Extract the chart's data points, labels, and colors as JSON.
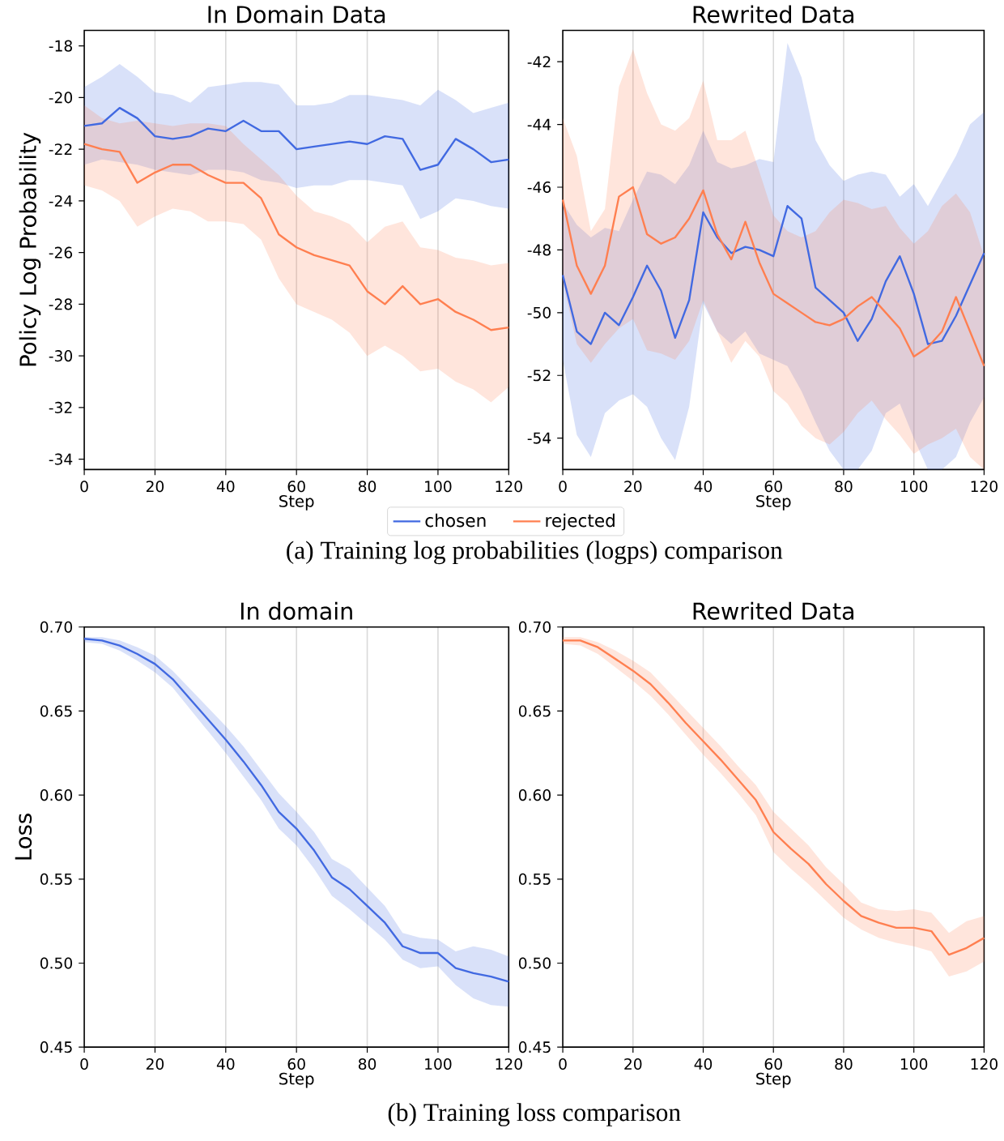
{
  "chart_data": [
    {
      "type": "line",
      "title": "In Domain Data",
      "xlabel": "Step",
      "ylabel": "Policy Log Probability",
      "x": [
        0,
        5,
        10,
        15,
        20,
        25,
        30,
        35,
        40,
        45,
        50,
        55,
        60,
        65,
        70,
        75,
        80,
        85,
        90,
        95,
        100,
        105,
        110,
        115,
        120
      ],
      "xlim": [
        0,
        120
      ],
      "xticks": [
        0,
        20,
        40,
        60,
        80,
        100,
        120
      ],
      "ylim": [
        -34.4,
        -17.4
      ],
      "yticks": [
        -34,
        -32,
        -30,
        -28,
        -26,
        -24,
        -22,
        -20,
        -18
      ],
      "grid": "x",
      "legend": "bottom",
      "annotations": [
        "(a) Training log probabilities (logps) comparison"
      ],
      "series": [
        {
          "name": "chosen",
          "color": "#4169e1",
          "values": [
            -21.1,
            -21.0,
            -20.4,
            -20.8,
            -21.5,
            -21.6,
            -21.5,
            -21.2,
            -21.3,
            -20.9,
            -21.3,
            -21.3,
            -22.0,
            -21.9,
            -21.8,
            -21.7,
            -21.8,
            -21.5,
            -21.6,
            -22.8,
            -22.6,
            -21.6,
            -22.0,
            -22.5,
            -22.4
          ],
          "upper": [
            -19.6,
            -19.2,
            -18.7,
            -19.2,
            -19.8,
            -19.9,
            -20.2,
            -19.6,
            -19.5,
            -19.4,
            -19.4,
            -19.5,
            -20.3,
            -20.3,
            -20.2,
            -19.9,
            -19.9,
            -20.0,
            -20.1,
            -20.3,
            -19.7,
            -20.1,
            -20.6,
            -20.4,
            -20.2
          ],
          "lower": [
            -22.6,
            -22.4,
            -22.5,
            -22.6,
            -22.8,
            -22.9,
            -23.0,
            -22.8,
            -22.8,
            -22.9,
            -23.2,
            -23.3,
            -23.5,
            -23.4,
            -23.4,
            -23.2,
            -23.2,
            -23.3,
            -23.4,
            -24.7,
            -24.4,
            -23.9,
            -24.0,
            -24.2,
            -24.3
          ]
        },
        {
          "name": "rejected",
          "color": "#ff7f50",
          "values": [
            -21.8,
            -22.0,
            -22.1,
            -23.3,
            -22.9,
            -22.6,
            -22.6,
            -23.0,
            -23.3,
            -23.3,
            -23.9,
            -25.3,
            -25.8,
            -26.1,
            -26.3,
            -26.5,
            -27.5,
            -28.0,
            -27.3,
            -28.0,
            -27.8,
            -28.3,
            -28.6,
            -29.0,
            -28.9
          ],
          "upper": [
            -20.3,
            -20.8,
            -21.0,
            -20.9,
            -21.0,
            -21.1,
            -21.0,
            -21.0,
            -21.1,
            -21.8,
            -22.4,
            -23.0,
            -23.8,
            -24.4,
            -24.6,
            -24.9,
            -25.6,
            -25.0,
            -24.8,
            -25.8,
            -25.9,
            -26.2,
            -26.3,
            -26.5,
            -26.4
          ],
          "lower": [
            -23.4,
            -23.6,
            -24.0,
            -25.0,
            -24.6,
            -24.3,
            -24.4,
            -24.8,
            -24.8,
            -24.9,
            -25.5,
            -27.0,
            -28.0,
            -28.3,
            -28.6,
            -29.1,
            -30.0,
            -29.6,
            -30.0,
            -30.6,
            -30.5,
            -31.0,
            -31.3,
            -31.8,
            -31.2
          ]
        }
      ]
    },
    {
      "type": "line",
      "title": "Rewrited Data",
      "xlabel": "Step",
      "x": [
        0,
        4,
        8,
        12,
        16,
        20,
        24,
        28,
        32,
        36,
        40,
        44,
        48,
        52,
        56,
        60,
        64,
        68,
        72,
        76,
        80,
        84,
        88,
        92,
        96,
        100,
        104,
        108,
        112,
        116,
        120
      ],
      "xlim": [
        0,
        120
      ],
      "xticks": [
        0,
        20,
        40,
        60,
        80,
        100,
        120
      ],
      "ylim": [
        -55,
        -41
      ],
      "yticks": [
        -54,
        -52,
        -50,
        -48,
        -46,
        -44,
        -42
      ],
      "grid": "x",
      "series": [
        {
          "color": "#4169e1",
          "values": [
            -48.8,
            -50.6,
            -51.0,
            -50.0,
            -50.4,
            -49.5,
            -48.5,
            -49.3,
            -50.8,
            -49.6,
            -46.8,
            -47.6,
            -48.1,
            -47.9,
            -48.0,
            -48.2,
            -46.6,
            -47.0,
            -49.2,
            -49.6,
            -50.0,
            -50.9,
            -50.2,
            -49.0,
            -48.2,
            -49.4,
            -51.0,
            -50.9,
            -50.1,
            -49.1,
            -48.1
          ],
          "upper": [
            -46.5,
            -47.2,
            -47.6,
            -47.3,
            -47.4,
            -46.4,
            -45.5,
            -45.6,
            -45.9,
            -45.3,
            -44.2,
            -45.2,
            -45.4,
            -45.3,
            -45.1,
            -45.2,
            -41.4,
            -42.5,
            -44.5,
            -45.3,
            -45.8,
            -45.6,
            -45.5,
            -45.6,
            -46.3,
            -45.9,
            -46.6,
            -45.8,
            -45.0,
            -44.0,
            -43.6
          ],
          "lower": [
            -51.5,
            -53.9,
            -54.6,
            -53.2,
            -52.8,
            -52.6,
            -53.0,
            -54.0,
            -54.7,
            -53.0,
            -49.7,
            -50.6,
            -51.0,
            -50.6,
            -51.3,
            -51.5,
            -51.7,
            -52.5,
            -53.5,
            -54.4,
            -55.0,
            -55.0,
            -54.4,
            -53.2,
            -52.9,
            -54.0,
            -55.0,
            -55.0,
            -54.6,
            -53.5,
            -52.7
          ]
        },
        {
          "color": "#ff7f50",
          "values": [
            -46.4,
            -48.5,
            -49.4,
            -48.5,
            -46.3,
            -46.0,
            -47.5,
            -47.8,
            -47.6,
            -47.0,
            -46.1,
            -47.5,
            -48.3,
            -47.1,
            -48.4,
            -49.4,
            -49.7,
            -50.0,
            -50.3,
            -50.4,
            -50.2,
            -49.8,
            -49.5,
            -50.0,
            -50.5,
            -51.4,
            -51.1,
            -50.6,
            -49.5,
            -50.6,
            -51.7
          ],
          "upper": [
            -43.8,
            -45.0,
            -47.4,
            -46.7,
            -42.8,
            -41.6,
            -43.0,
            -44.0,
            -44.2,
            -43.8,
            -42.6,
            -44.5,
            -44.5,
            -44.2,
            -45.5,
            -46.9,
            -47.4,
            -47.6,
            -47.4,
            -46.8,
            -46.4,
            -46.5,
            -46.7,
            -46.6,
            -47.3,
            -47.8,
            -47.4,
            -46.6,
            -46.2,
            -46.8,
            -48.2
          ],
          "lower": [
            -49.0,
            -51.0,
            -51.6,
            -51.0,
            -50.5,
            -50.2,
            -51.2,
            -51.3,
            -51.5,
            -50.9,
            -49.6,
            -50.6,
            -51.6,
            -50.9,
            -51.4,
            -52.5,
            -52.9,
            -53.6,
            -54.0,
            -54.2,
            -53.8,
            -53.2,
            -52.8,
            -53.4,
            -53.9,
            -54.5,
            -54.2,
            -54.0,
            -53.7,
            -54.6,
            -55.0
          ]
        }
      ]
    },
    {
      "type": "line",
      "title": "In domain",
      "xlabel": "Step",
      "ylabel": "Loss",
      "x": [
        0,
        5,
        10,
        15,
        20,
        25,
        30,
        35,
        40,
        45,
        50,
        55,
        60,
        65,
        70,
        75,
        80,
        85,
        90,
        95,
        100,
        105,
        110,
        115,
        120
      ],
      "xlim": [
        0,
        120
      ],
      "xticks": [
        0,
        20,
        40,
        60,
        80,
        100,
        120
      ],
      "ylim": [
        0.45,
        0.7
      ],
      "yticks": [
        {
          "value": 0.45,
          "label": "0.45"
        },
        {
          "value": 0.5,
          "label": "0.50"
        },
        {
          "value": 0.55,
          "label": "0.55"
        },
        {
          "value": 0.6,
          "label": "0.60"
        },
        {
          "value": 0.65,
          "label": "0.65"
        },
        {
          "value": 0.7,
          "label": "0.70"
        }
      ],
      "grid": "x",
      "annotations": [
        "(b) Training loss comparison"
      ],
      "series": [
        {
          "color": "#4169e1",
          "values": [
            0.693,
            0.692,
            0.689,
            0.684,
            0.678,
            0.669,
            0.657,
            0.645,
            0.633,
            0.62,
            0.606,
            0.59,
            0.58,
            0.567,
            0.551,
            0.544,
            0.534,
            0.524,
            0.51,
            0.506,
            0.506,
            0.497,
            0.494,
            0.492,
            0.489
          ],
          "upper": [
            0.694,
            0.694,
            0.692,
            0.688,
            0.683,
            0.674,
            0.663,
            0.652,
            0.641,
            0.629,
            0.615,
            0.601,
            0.59,
            0.578,
            0.562,
            0.556,
            0.545,
            0.534,
            0.518,
            0.515,
            0.514,
            0.507,
            0.51,
            0.508,
            0.504
          ],
          "lower": [
            0.691,
            0.69,
            0.686,
            0.68,
            0.673,
            0.664,
            0.651,
            0.638,
            0.625,
            0.611,
            0.597,
            0.58,
            0.57,
            0.556,
            0.54,
            0.532,
            0.523,
            0.514,
            0.502,
            0.497,
            0.498,
            0.487,
            0.479,
            0.475,
            0.474
          ]
        }
      ]
    },
    {
      "type": "line",
      "title": "Rewrited Data",
      "xlabel": "Step",
      "x": [
        0,
        5,
        10,
        15,
        20,
        25,
        30,
        35,
        40,
        45,
        50,
        55,
        60,
        65,
        70,
        75,
        80,
        85,
        90,
        95,
        100,
        105,
        110,
        115,
        120
      ],
      "xlim": [
        0,
        120
      ],
      "xticks": [
        0,
        20,
        40,
        60,
        80,
        100,
        120
      ],
      "ylim": [
        0.45,
        0.7
      ],
      "yticks": [
        {
          "value": 0.45,
          "label": "0.45"
        },
        {
          "value": 0.5,
          "label": "0.50"
        },
        {
          "value": 0.55,
          "label": "0.55"
        },
        {
          "value": 0.6,
          "label": "0.60"
        },
        {
          "value": 0.65,
          "label": "0.65"
        },
        {
          "value": 0.7,
          "label": "0.70"
        }
      ],
      "grid": "x",
      "series": [
        {
          "color": "#ff7f50",
          "values": [
            0.692,
            0.692,
            0.688,
            0.681,
            0.674,
            0.666,
            0.655,
            0.643,
            0.632,
            0.621,
            0.609,
            0.597,
            0.578,
            0.568,
            0.559,
            0.547,
            0.537,
            0.528,
            0.524,
            0.521,
            0.521,
            0.519,
            0.505,
            0.509,
            0.515
          ],
          "upper": [
            0.694,
            0.694,
            0.691,
            0.686,
            0.68,
            0.673,
            0.662,
            0.651,
            0.64,
            0.629,
            0.617,
            0.606,
            0.59,
            0.58,
            0.57,
            0.557,
            0.547,
            0.536,
            0.532,
            0.531,
            0.532,
            0.53,
            0.518,
            0.525,
            0.528
          ],
          "lower": [
            0.69,
            0.689,
            0.684,
            0.676,
            0.668,
            0.659,
            0.648,
            0.636,
            0.624,
            0.613,
            0.601,
            0.588,
            0.566,
            0.556,
            0.547,
            0.537,
            0.527,
            0.52,
            0.515,
            0.512,
            0.51,
            0.507,
            0.492,
            0.495,
            0.501
          ]
        }
      ]
    }
  ]
}
